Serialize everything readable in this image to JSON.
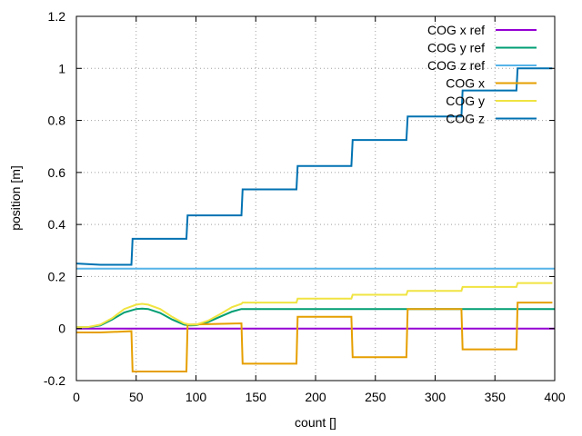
{
  "chart_data": {
    "type": "line",
    "xlabel": "count []",
    "ylabel": "position [m]",
    "xlim": [
      0,
      400
    ],
    "ylim": [
      -0.2,
      1.2
    ],
    "xticks": [
      0,
      50,
      100,
      150,
      200,
      250,
      300,
      350,
      400
    ],
    "yticks": [
      -0.2,
      0,
      0.2,
      0.4,
      0.6,
      0.8,
      1,
      1.2
    ],
    "xtick_labels": [
      "0",
      "50",
      "100",
      "150",
      "200",
      "250",
      "300",
      "350",
      "400"
    ],
    "ytick_labels": [
      "-0.2",
      "0",
      "0.2",
      "0.4",
      "0.6",
      "0.8",
      "1",
      "1.2"
    ],
    "grid": true,
    "legend_position": "top-right",
    "series": [
      {
        "name": "COG x ref",
        "color": "#9400d3",
        "x": [
          0,
          400
        ],
        "y": [
          0,
          0
        ]
      },
      {
        "name": "COG y ref",
        "color": "#009e73",
        "x": [
          0,
          10,
          20,
          30,
          40,
          50,
          55,
          60,
          70,
          80,
          90,
          95,
          100,
          110,
          120,
          130,
          138,
          400
        ],
        "y": [
          0.005,
          0.005,
          0.012,
          0.035,
          0.062,
          0.075,
          0.077,
          0.075,
          0.06,
          0.035,
          0.015,
          0.012,
          0.013,
          0.025,
          0.045,
          0.065,
          0.075,
          0.075
        ]
      },
      {
        "name": "COG z ref",
        "color": "#56b4e9",
        "x": [
          0,
          400
        ],
        "y": [
          0.23,
          0.23
        ]
      },
      {
        "name": "COG x",
        "color": "#e69f00",
        "x": [
          0,
          20,
          46,
          47,
          92,
          93,
          138,
          139,
          184,
          185,
          230,
          231,
          276,
          277,
          322,
          323,
          368,
          369,
          398
        ],
        "y": [
          -0.015,
          -0.015,
          -0.01,
          -0.165,
          -0.165,
          0.015,
          0.02,
          -0.135,
          -0.135,
          0.045,
          0.045,
          -0.11,
          -0.11,
          0.075,
          0.075,
          -0.08,
          -0.08,
          0.1,
          0.1
        ]
      },
      {
        "name": "COG y",
        "color": "#f0e442",
        "x": [
          0,
          10,
          20,
          30,
          40,
          50,
          55,
          60,
          70,
          80,
          90,
          95,
          100,
          110,
          120,
          130,
          138,
          139,
          184,
          185,
          230,
          231,
          276,
          277,
          322,
          323,
          368,
          369,
          398
        ],
        "y": [
          0.005,
          0.006,
          0.015,
          0.04,
          0.075,
          0.092,
          0.095,
          0.092,
          0.075,
          0.045,
          0.02,
          0.015,
          0.015,
          0.03,
          0.055,
          0.082,
          0.095,
          0.1,
          0.1,
          0.115,
          0.115,
          0.13,
          0.13,
          0.145,
          0.145,
          0.16,
          0.16,
          0.175,
          0.175
        ]
      },
      {
        "name": "COG z",
        "color": "#0072b2",
        "x": [
          0,
          20,
          46,
          47,
          92,
          93,
          138,
          139,
          184,
          185,
          230,
          231,
          276,
          277,
          322,
          323,
          368,
          369,
          398
        ],
        "y": [
          0.25,
          0.245,
          0.245,
          0.345,
          0.345,
          0.435,
          0.435,
          0.535,
          0.535,
          0.625,
          0.625,
          0.725,
          0.725,
          0.815,
          0.815,
          0.915,
          0.915,
          1.0,
          1.0
        ]
      }
    ]
  }
}
